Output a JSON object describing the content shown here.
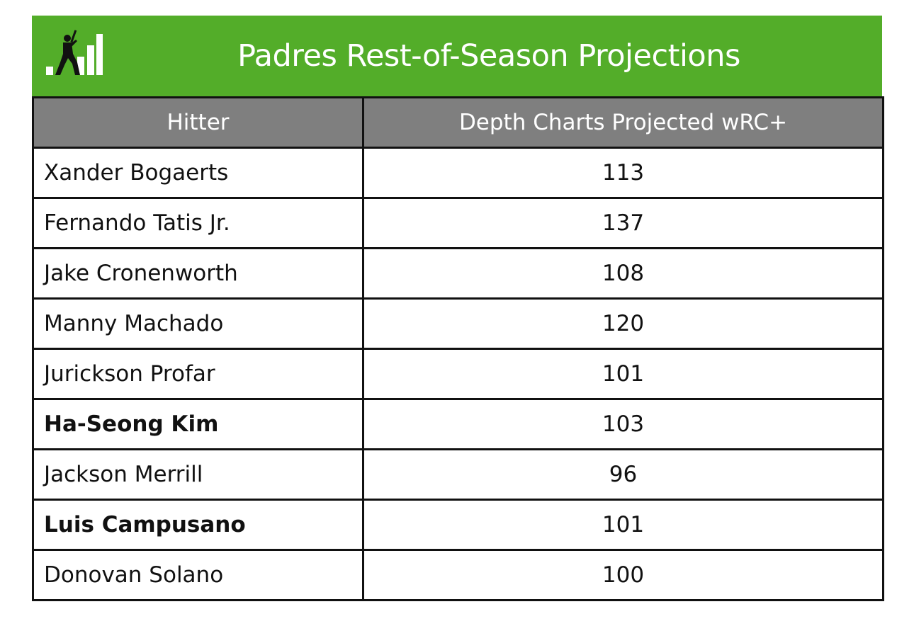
{
  "chart_data": {
    "type": "table",
    "title": "Padres Rest-of-Season Projections",
    "columns": [
      "Hitter",
      "Depth Charts Projected wRC+"
    ],
    "rows": [
      {
        "hitter": "Xander Bogaerts",
        "wrc_plus": 113,
        "bold": false
      },
      {
        "hitter": "Fernando Tatis Jr.",
        "wrc_plus": 137,
        "bold": false
      },
      {
        "hitter": "Jake Cronenworth",
        "wrc_plus": 108,
        "bold": false
      },
      {
        "hitter": "Manny Machado",
        "wrc_plus": 120,
        "bold": false
      },
      {
        "hitter": "Jurickson Profar",
        "wrc_plus": 101,
        "bold": false
      },
      {
        "hitter": "Ha-Seong Kim",
        "wrc_plus": 103,
        "bold": true
      },
      {
        "hitter": "Jackson Merrill",
        "wrc_plus": 96,
        "bold": false
      },
      {
        "hitter": "Luis Campusano",
        "wrc_plus": 101,
        "bold": true
      },
      {
        "hitter": "Donovan Solano",
        "wrc_plus": 100,
        "bold": false
      }
    ]
  },
  "colors": {
    "banner": "#53ad29",
    "header_bg": "#7f7f7f",
    "border": "#111111"
  },
  "logo_icon": "batter-bar-chart-logo"
}
